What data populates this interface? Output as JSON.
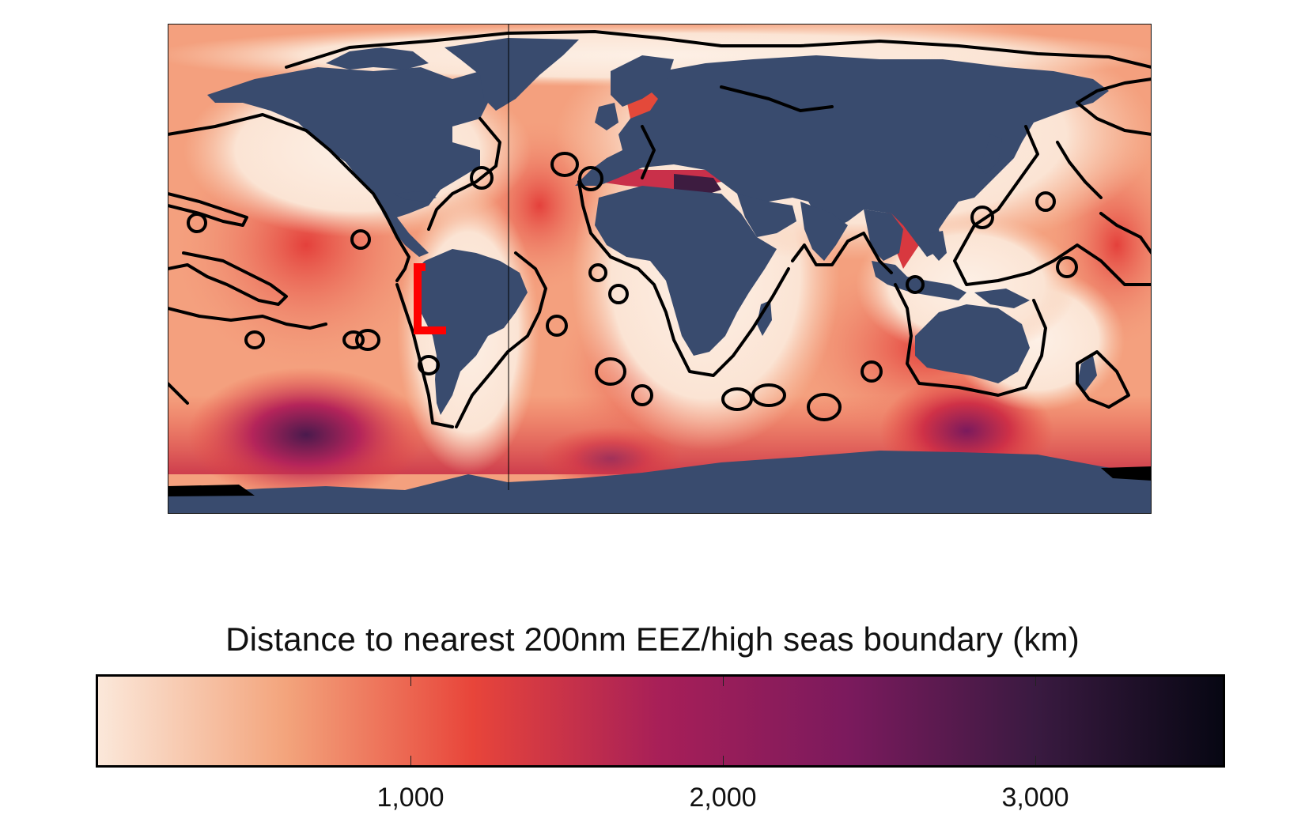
{
  "legend": {
    "title": "Distance to nearest 200nm EEZ/high seas boundary (km)",
    "ticks": [
      {
        "value": 1000,
        "label": "1,000"
      },
      {
        "value": 2000,
        "label": "2,000"
      },
      {
        "value": 3000,
        "label": "3,000"
      }
    ],
    "range": [
      0,
      3600
    ],
    "gradient_colors": [
      "#fbe8da",
      "#f3a47c",
      "#e8453a",
      "#a71f58",
      "#7b1a5d",
      "#3a1a41",
      "#070713"
    ]
  },
  "map": {
    "land_color": "#394b6e",
    "ocean_base_color": "#f6a27e",
    "boundary_color": "#000000",
    "highlight_box_color": "#ff0000"
  }
}
